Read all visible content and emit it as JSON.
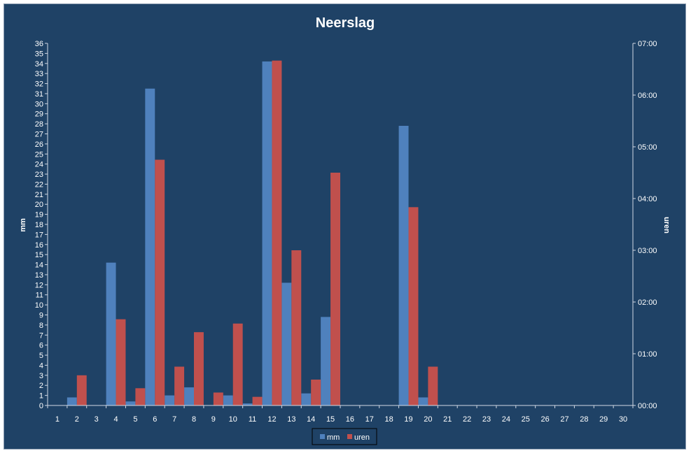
{
  "chart_data": {
    "type": "bar",
    "title": "Neerslag",
    "categories": [
      "1",
      "2",
      "3",
      "4",
      "5",
      "6",
      "7",
      "8",
      "9",
      "10",
      "11",
      "12",
      "13",
      "14",
      "15",
      "16",
      "17",
      "18",
      "19",
      "20",
      "21",
      "22",
      "23",
      "24",
      "25",
      "26",
      "27",
      "28",
      "29",
      "30"
    ],
    "series": [
      {
        "name": "mm",
        "axis": "left",
        "color": "#4f81bd",
        "values": [
          0,
          0.8,
          0,
          14.2,
          0.4,
          31.5,
          1.0,
          1.8,
          0,
          1.0,
          0.2,
          34.2,
          12.2,
          1.2,
          8.8,
          0,
          0,
          0,
          27.8,
          0.8,
          0,
          0,
          0,
          0,
          0,
          0,
          0,
          0,
          0,
          0
        ]
      },
      {
        "name": "uren",
        "axis": "right",
        "unit": "minutes",
        "color": "#c0504d",
        "values": [
          0,
          35,
          0,
          100,
          20,
          285,
          45,
          85,
          15,
          95,
          10,
          400,
          180,
          30,
          270,
          0,
          0,
          0,
          230,
          45,
          0,
          0,
          0,
          0,
          0,
          0,
          0,
          0,
          0,
          0
        ]
      }
    ],
    "ylabel": "mm",
    "y2label": "uren",
    "ylim": [
      0,
      36
    ],
    "y2lim_minutes": [
      0,
      420
    ],
    "y_ticks": [
      "0",
      "1",
      "2",
      "3",
      "4",
      "5",
      "6",
      "7",
      "8",
      "9",
      "10",
      "11",
      "12",
      "13",
      "14",
      "15",
      "16",
      "17",
      "18",
      "19",
      "20",
      "21",
      "22",
      "23",
      "24",
      "25",
      "26",
      "27",
      "28",
      "29",
      "30",
      "31",
      "32",
      "33",
      "34",
      "35",
      "36"
    ],
    "y2_ticks": [
      "00:00",
      "01:00",
      "02:00",
      "03:00",
      "04:00",
      "05:00",
      "06:00",
      "07:00"
    ],
    "legend": {
      "position": "bottom",
      "entries": [
        "mm",
        "uren"
      ]
    },
    "grid": false,
    "background": "#1f4266"
  }
}
